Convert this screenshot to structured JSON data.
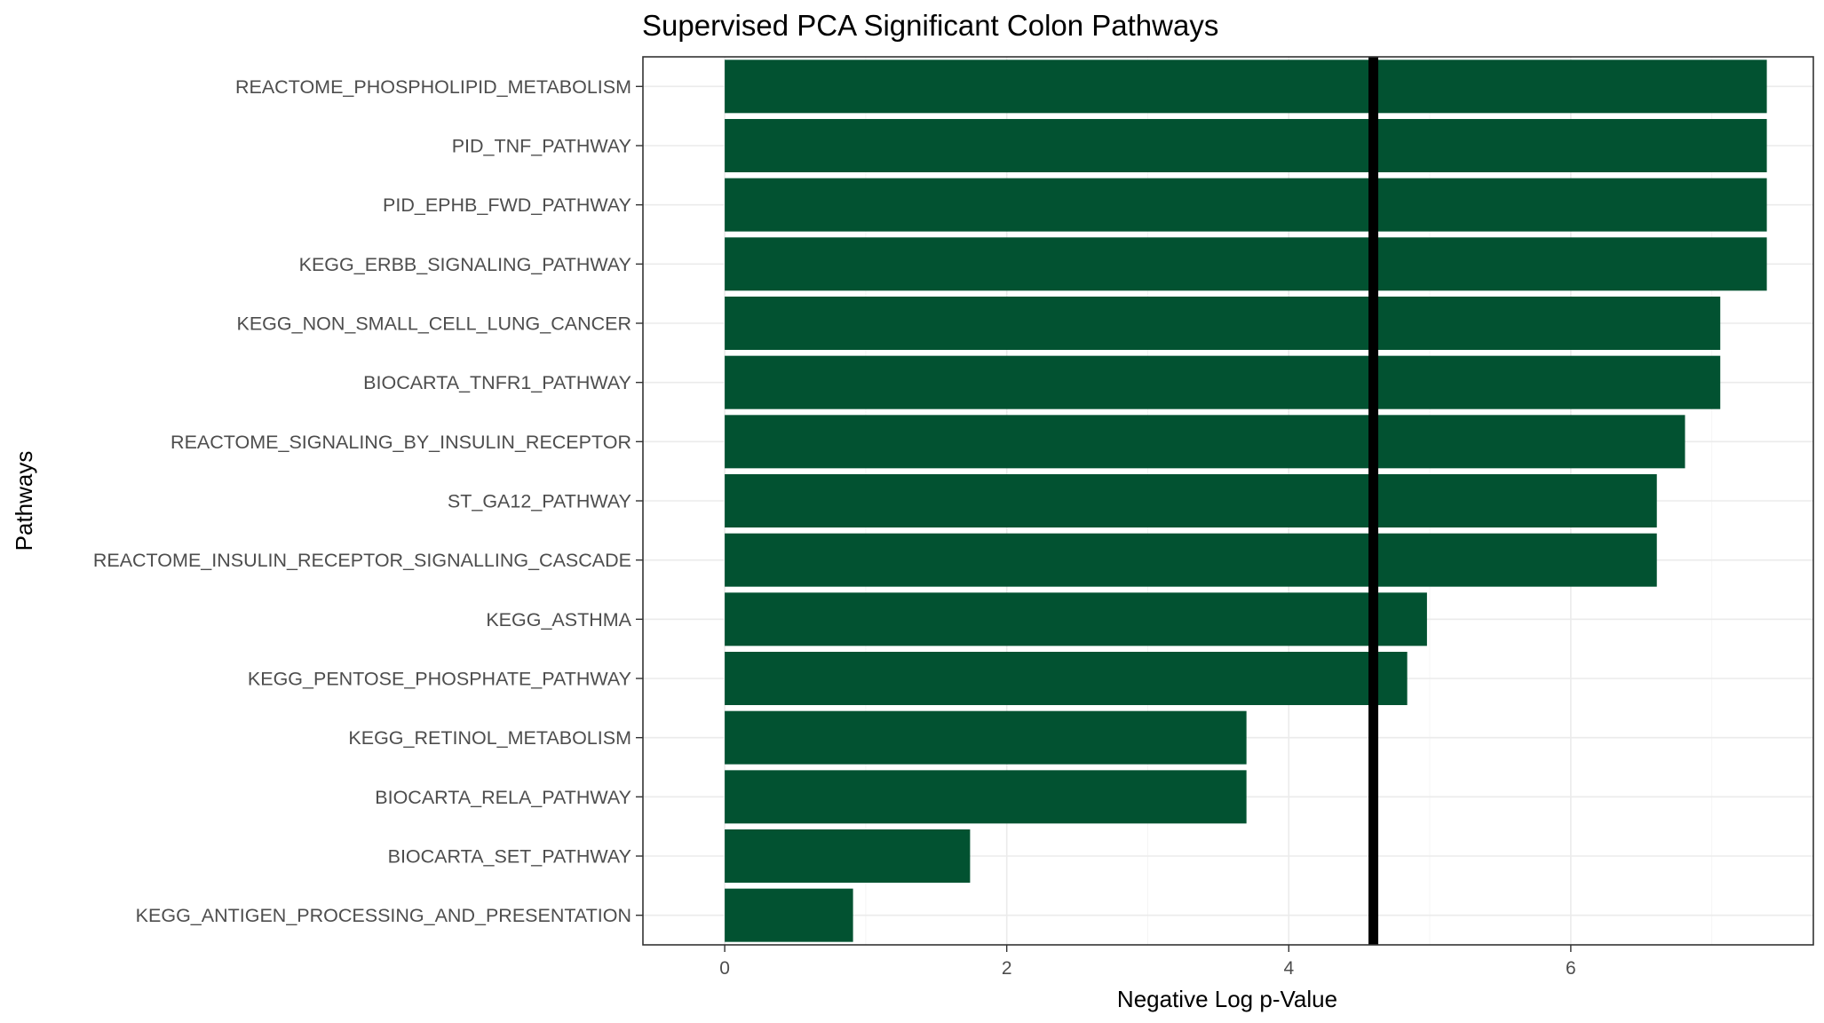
{
  "chart_data": {
    "type": "bar",
    "orientation": "horizontal",
    "title": "Supervised PCA Significant Colon Pathways",
    "xlabel": "Negative Log p-Value",
    "ylabel": "Pathways",
    "xlim": [
      -0.58,
      7.72
    ],
    "x_ticks": [
      0,
      2,
      4,
      6
    ],
    "x_tick_labels": [
      "0",
      "2",
      "4",
      "6"
    ],
    "categories": [
      "REACTOME_PHOSPHOLIPID_METABOLISM",
      "PID_TNF_PATHWAY",
      "PID_EPHB_FWD_PATHWAY",
      "KEGG_ERBB_SIGNALING_PATHWAY",
      "KEGG_NON_SMALL_CELL_LUNG_CANCER",
      "BIOCARTA_TNFR1_PATHWAY",
      "REACTOME_SIGNALING_BY_INSULIN_RECEPTOR",
      "ST_GA12_PATHWAY",
      "REACTOME_INSULIN_RECEPTOR_SIGNALLING_CASCADE",
      "KEGG_ASTHMA",
      "KEGG_PENTOSE_PHOSPHATE_PATHWAY",
      "KEGG_RETINOL_METABOLISM",
      "BIOCARTA_RELA_PATHWAY",
      "BIOCARTA_SET_PATHWAY",
      "KEGG_ANTIGEN_PROCESSING_AND_PRESENTATION"
    ],
    "values": [
      7.39,
      7.39,
      7.39,
      7.39,
      7.06,
      7.06,
      6.81,
      6.61,
      6.61,
      4.98,
      4.84,
      3.7,
      3.7,
      1.74,
      0.91
    ],
    "reference_line": {
      "x": 4.6,
      "color": "#000000"
    },
    "bar_color": "#025231",
    "grid": true,
    "legend": "none"
  }
}
